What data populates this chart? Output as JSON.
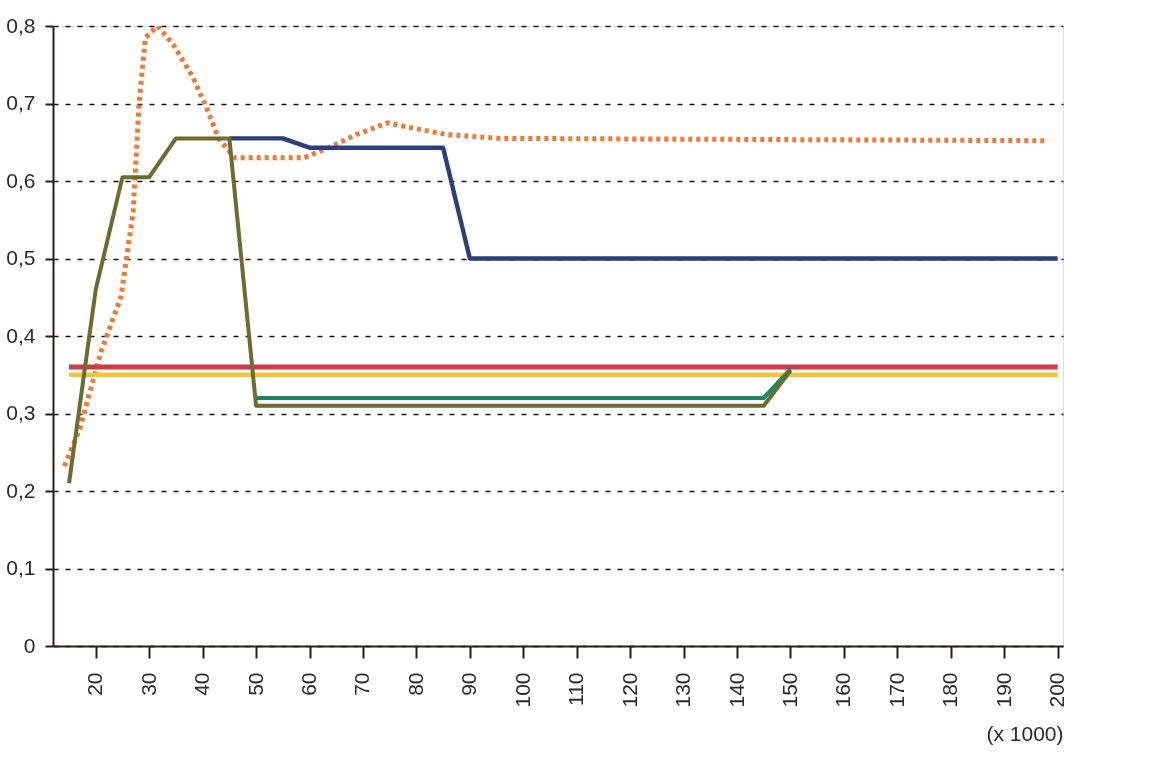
{
  "chart_data": {
    "type": "line",
    "xlabel": "(x 1000)",
    "xlim": [
      12,
      201
    ],
    "xticks": [
      20,
      30,
      40,
      50,
      60,
      70,
      80,
      90,
      100,
      110,
      120,
      130,
      140,
      150,
      160,
      170,
      180,
      190,
      200
    ],
    "ylim": [
      0,
      0.8
    ],
    "yticks": [
      0,
      {
        "value": 0.1,
        "label": "0,1"
      },
      {
        "value": 0.2,
        "label": "0,2"
      },
      {
        "value": 0.3,
        "label": "0,3"
      },
      {
        "value": 0.4,
        "label": "0,4"
      },
      {
        "value": 0.5,
        "label": "0,5"
      },
      {
        "value": 0.6,
        "label": "0,6"
      },
      {
        "value": 0.7,
        "label": "0,7"
      },
      {
        "value": 0.8,
        "label": "0,8"
      }
    ],
    "grid": "y",
    "legend": false,
    "marker": "none",
    "series": [
      {
        "color": "#f07830",
        "line_style": "dotted",
        "x": [
          14,
          17,
          21,
          24.7,
          27,
          28.1,
          29.3,
          31.6,
          34.6,
          38.1,
          40.7,
          43,
          46,
          59,
          64.3,
          68.8,
          74.6,
          78,
          85.6,
          95.5,
          197.5
        ],
        "values": [
          0.23,
          0.28,
          0.38,
          0.45,
          0.56,
          0.7,
          0.785,
          0.8,
          0.775,
          0.735,
          0.695,
          0.655,
          0.63,
          0.63,
          0.645,
          0.66,
          0.675,
          0.67,
          0.66,
          0.655,
          0.652
        ]
      },
      {
        "color": "#d0384c",
        "line_style": "solid",
        "x": [
          15,
          200
        ],
        "values": [
          0.36,
          0.36
        ]
      },
      {
        "color": "#f7c52a",
        "line_style": "solid",
        "x": [
          15,
          200
        ],
        "values": [
          0.35,
          0.35
        ]
      },
      {
        "color": "#2b3f7e",
        "line_style": "solid",
        "x": [
          45,
          55,
          60,
          85,
          90,
          200
        ],
        "values": [
          0.655,
          0.655,
          0.643,
          0.643,
          0.5,
          0.5
        ]
      },
      {
        "color": "#168a5e",
        "line_style": "solid",
        "x": [
          50,
          145,
          150
        ],
        "values": [
          0.32,
          0.32,
          0.357
        ]
      },
      {
        "color": "#6e6b2e",
        "line_style": "solid",
        "x": [
          15,
          20,
          25,
          30,
          35,
          45,
          50,
          145,
          150
        ],
        "values": [
          0.21,
          0.46,
          0.605,
          0.605,
          0.655,
          0.655,
          0.31,
          0.31,
          0.355
        ]
      }
    ]
  }
}
